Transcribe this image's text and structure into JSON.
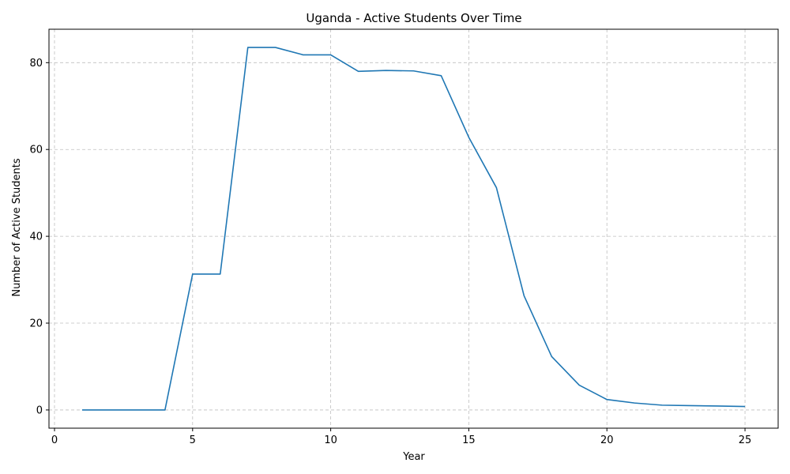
{
  "chart_data": {
    "type": "line",
    "title": "Uganda - Active Students Over Time",
    "xlabel": "Year",
    "ylabel": "Number of Active Students",
    "xlim": [
      -0.2,
      26.2
    ],
    "ylim": [
      -4.2,
      87.7
    ],
    "xticks": [
      0,
      5,
      10,
      15,
      20,
      25
    ],
    "yticks": [
      0,
      20,
      40,
      60,
      80
    ],
    "grid": true,
    "series": [
      {
        "color": "#1f77b4",
        "x": [
          1,
          2,
          3,
          4,
          5,
          6,
          7,
          8,
          9,
          10,
          11,
          12,
          13,
          14,
          15,
          16,
          17,
          18,
          19,
          20,
          21,
          22,
          23,
          24,
          25
        ],
        "y": [
          0,
          0,
          0,
          0,
          31.3,
          31.3,
          83.5,
          83.5,
          81.8,
          81.8,
          78.0,
          78.2,
          78.1,
          77.0,
          62.8,
          51.2,
          26.3,
          12.3,
          5.7,
          2.4,
          1.6,
          1.1,
          1.0,
          0.9,
          0.8
        ]
      }
    ]
  }
}
